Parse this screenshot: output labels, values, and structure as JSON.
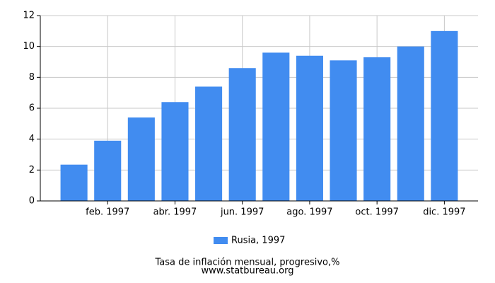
{
  "chart_data": {
    "type": "bar",
    "title": "Tasa de inflación mensual, progresivo,%",
    "subtitle": "www.statbureau.org",
    "categories": [
      null,
      "feb. 1997",
      null,
      "abr. 1997",
      null,
      "jun. 1997",
      null,
      "ago. 1997",
      null,
      "oct. 1997",
      null,
      "dic. 1997"
    ],
    "series": [
      {
        "name": "Rusia, 1997",
        "color": "#418cf0",
        "values": [
          2.35,
          3.9,
          5.4,
          6.4,
          7.4,
          8.6,
          9.6,
          9.4,
          9.1,
          9.3,
          10.0,
          11.0
        ]
      }
    ],
    "ylim": [
      0,
      12
    ],
    "yticks": [
      0,
      2,
      4,
      6,
      8,
      10,
      12
    ],
    "grid": true,
    "legend": "bottom"
  }
}
